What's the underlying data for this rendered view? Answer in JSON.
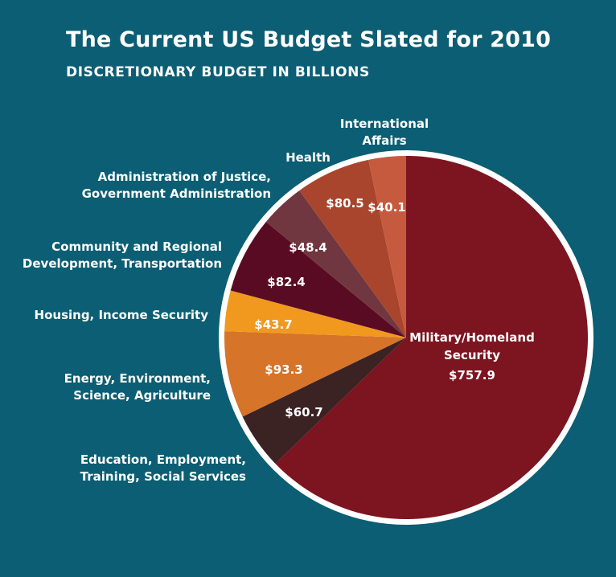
{
  "chart_data": {
    "type": "pie",
    "title": "The Current US Budget Slated for 2010",
    "subtitle": "DISCRETIONARY BUDGET IN BILLIONS",
    "slices": [
      {
        "label": [
          "Military/Homeland",
          "Security"
        ],
        "value": 757.9,
        "display": "$757.9",
        "color": "#7c1520"
      },
      {
        "label": [
          "Education, Employment,",
          "Training, Social Services"
        ],
        "value": 60.7,
        "display": "$60.7",
        "color": "#3b2223"
      },
      {
        "label": [
          "Energy, Environment,",
          "Science, Agriculture"
        ],
        "value": 93.3,
        "display": "$93.3",
        "color": "#d6742a"
      },
      {
        "label": [
          "Housing, Income Security"
        ],
        "value": 43.7,
        "display": "$43.7",
        "color": "#f0991e"
      },
      {
        "label": [
          "Community and Regional",
          "Development, Transportation"
        ],
        "value": 82.4,
        "display": "$82.4",
        "color": "#5a0b24"
      },
      {
        "label": [
          "Administration of Justice,",
          "Government Administration"
        ],
        "value": 48.4,
        "display": "$48.4",
        "color": "#713740"
      },
      {
        "label": [
          "Health"
        ],
        "value": 80.5,
        "display": "$80.5",
        "color": "#a8452c"
      },
      {
        "label": [
          "International",
          "Affairs"
        ],
        "value": 40.1,
        "display": "$40.1",
        "color": "#c65a3e"
      }
    ]
  }
}
